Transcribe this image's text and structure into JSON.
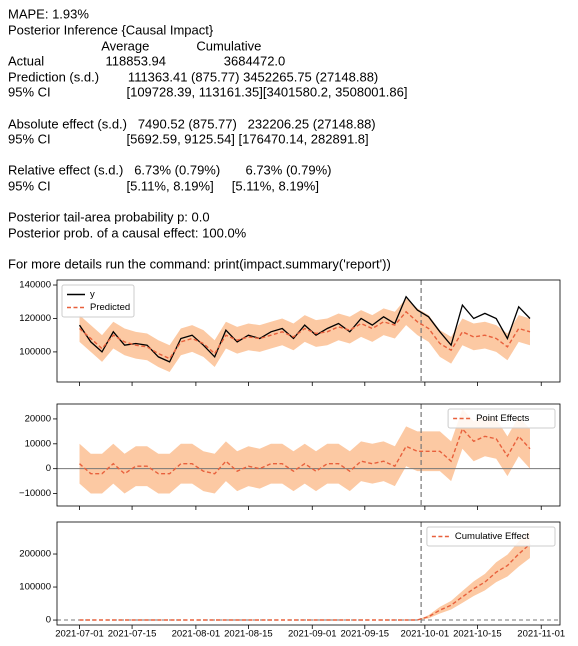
{
  "report": {
    "lines": [
      "MAPE: 1.93%",
      "Posterior Inference {Causal Impact}",
      "                          Average             Cumulative",
      "Actual                 118853.94                3684472.0",
      "Prediction (s.d.)        111363.41 (875.77) 3452265.75 (27148.88)",
      "95% CI                     [109728.39, 113161.35][3401580.2, 3508001.86]",
      "Absolute effect (s.d.)   7490.52 (875.77)   232206.25 (27148.88)",
      "95% CI                     [5692.59, 9125.54] [176470.14, 282891.8]",
      "Relative effect (s.d.)   6.73% (0.79%)       6.73% (0.79%)",
      "95% CI                     [5.11%, 8.19%]     [5.11%, 8.19%]",
      "Posterior tail-area probability p: 0.0",
      "Posterior prob. of a causal effect: 100.0%",
      "For more details run the command: print(impact.summary('report'))"
    ]
  },
  "chart_data": [
    {
      "type": "line",
      "legend": "upper left",
      "intervention": "2021-09-30",
      "xlim": [
        "2021-06-25",
        "2021-11-06"
      ],
      "ylim": [
        82000,
        143000
      ],
      "yticks": [
        100000,
        120000,
        140000
      ],
      "x": [
        "2021-07-01",
        "2021-07-04",
        "2021-07-07",
        "2021-07-10",
        "2021-07-13",
        "2021-07-16",
        "2021-07-19",
        "2021-07-22",
        "2021-07-25",
        "2021-07-28",
        "2021-07-31",
        "2021-08-03",
        "2021-08-06",
        "2021-08-09",
        "2021-08-12",
        "2021-08-15",
        "2021-08-18",
        "2021-08-21",
        "2021-08-24",
        "2021-08-27",
        "2021-08-30",
        "2021-09-02",
        "2021-09-05",
        "2021-09-08",
        "2021-09-11",
        "2021-09-14",
        "2021-09-17",
        "2021-09-20",
        "2021-09-23",
        "2021-09-26",
        "2021-09-29",
        "2021-10-02",
        "2021-10-05",
        "2021-10-08",
        "2021-10-11",
        "2021-10-14",
        "2021-10-17",
        "2021-10-20",
        "2021-10-23",
        "2021-10-26",
        "2021-10-29"
      ],
      "band": {
        "color": "#fbbf93",
        "lower": [
          106000,
          100000,
          94000,
          102000,
          98000,
          96000,
          95000,
          91000,
          88000,
          98000,
          100000,
          97000,
          91000,
          102000,
          99000,
          101000,
          100000,
          102000,
          104000,
          101000,
          106000,
          103000,
          104000,
          107000,
          105000,
          109000,
          106000,
          110000,
          108000,
          116000,
          110000,
          106000,
          97000,
          93000,
          104000,
          101000,
          102000,
          100000,
          95000,
          106000,
          104000
        ],
        "upper": [
          122000,
          116000,
          110000,
          118000,
          114000,
          112000,
          111000,
          107000,
          104000,
          114000,
          116000,
          113000,
          107000,
          118000,
          115000,
          117000,
          116000,
          118000,
          120000,
          117000,
          122000,
          119000,
          120000,
          123000,
          121000,
          125000,
          122000,
          126000,
          124000,
          132000,
          126000,
          122000,
          113000,
          109000,
          120000,
          117000,
          118000,
          116000,
          111000,
          122000,
          120000
        ]
      },
      "series": [
        {
          "name": "y",
          "color": "#000000",
          "style": "solid",
          "values": [
            116000,
            106000,
            100000,
            112000,
            104000,
            105000,
            104000,
            97000,
            94000,
            108000,
            110000,
            104000,
            97000,
            113000,
            106000,
            110000,
            108000,
            112000,
            114000,
            108000,
            116000,
            110000,
            114000,
            117000,
            112000,
            120000,
            116000,
            121000,
            117000,
            133000,
            125000,
            121000,
            112000,
            104000,
            128000,
            120000,
            123000,
            120000,
            108000,
            127000,
            120000
          ]
        },
        {
          "name": "Predicted",
          "color": "#e8603c",
          "style": "dashed",
          "values": [
            114000,
            108000,
            102000,
            110000,
            106000,
            104000,
            103000,
            99000,
            96000,
            106000,
            108000,
            105000,
            99000,
            110000,
            107000,
            109000,
            108000,
            110000,
            112000,
            109000,
            114000,
            111000,
            112000,
            115000,
            113000,
            117000,
            114000,
            118000,
            116000,
            124000,
            118000,
            114000,
            105000,
            101000,
            112000,
            109000,
            110000,
            108000,
            103000,
            114000,
            112000
          ]
        }
      ]
    },
    {
      "type": "line",
      "legend": "upper right",
      "intervention": "2021-09-30",
      "zero_line": "solid",
      "xlim": [
        "2021-06-25",
        "2021-11-06"
      ],
      "ylim": [
        -15000,
        26000
      ],
      "yticks": [
        {
          "value": -10000,
          "label": "−10000"
        },
        0,
        10000,
        20000
      ],
      "x": [
        "2021-07-01",
        "2021-07-04",
        "2021-07-07",
        "2021-07-10",
        "2021-07-13",
        "2021-07-16",
        "2021-07-19",
        "2021-07-22",
        "2021-07-25",
        "2021-07-28",
        "2021-07-31",
        "2021-08-03",
        "2021-08-06",
        "2021-08-09",
        "2021-08-12",
        "2021-08-15",
        "2021-08-18",
        "2021-08-21",
        "2021-08-24",
        "2021-08-27",
        "2021-08-30",
        "2021-09-02",
        "2021-09-05",
        "2021-09-08",
        "2021-09-11",
        "2021-09-14",
        "2021-09-17",
        "2021-09-20",
        "2021-09-23",
        "2021-09-26",
        "2021-09-29",
        "2021-10-02",
        "2021-10-05",
        "2021-10-08",
        "2021-10-11",
        "2021-10-14",
        "2021-10-17",
        "2021-10-20",
        "2021-10-23",
        "2021-10-26",
        "2021-10-29"
      ],
      "band": {
        "color": "#fbbf93",
        "lower": [
          -6000,
          -10000,
          -10000,
          -6000,
          -10000,
          -7000,
          -7000,
          -10000,
          -10000,
          -6000,
          -6000,
          -9000,
          -10000,
          -5000,
          -9000,
          -7000,
          -8000,
          -6000,
          -6000,
          -9000,
          -6000,
          -9000,
          -6000,
          -6000,
          -9000,
          -5000,
          -6000,
          -5000,
          -7000,
          1000,
          -1000,
          -1000,
          -1000,
          -5000,
          8000,
          3000,
          5000,
          4000,
          -3000,
          5000,
          0
        ],
        "upper": [
          10000,
          6000,
          6000,
          10000,
          6000,
          9000,
          9000,
          6000,
          6000,
          10000,
          10000,
          7000,
          6000,
          11000,
          7000,
          9000,
          8000,
          10000,
          10000,
          7000,
          10000,
          7000,
          10000,
          10000,
          7000,
          11000,
          10000,
          11000,
          9000,
          17000,
          15000,
          15000,
          15000,
          11000,
          24000,
          19000,
          21000,
          20000,
          13000,
          21000,
          16000
        ]
      },
      "series": [
        {
          "name": "Point Effects",
          "color": "#e8603c",
          "style": "dashed",
          "values": [
            2000,
            -2000,
            -2000,
            2000,
            -2000,
            1000,
            1000,
            -2000,
            -2000,
            2000,
            2000,
            -1000,
            -2000,
            3000,
            -1000,
            1000,
            0,
            2000,
            2000,
            -1000,
            2000,
            -1000,
            2000,
            2000,
            -1000,
            3000,
            2000,
            3000,
            1000,
            9000,
            7000,
            7000,
            7000,
            3000,
            16000,
            11000,
            13000,
            12000,
            5000,
            13000,
            8000
          ]
        }
      ]
    },
    {
      "type": "line",
      "legend": "upper right",
      "intervention": "2021-09-30",
      "zero_line": "dashed",
      "xlim": [
        "2021-06-25",
        "2021-11-06"
      ],
      "xticks": [
        "2021-07-01",
        "2021-07-15",
        "2021-08-01",
        "2021-08-15",
        "2021-09-01",
        "2021-09-15",
        "2021-10-01",
        "2021-10-15",
        "2021-11-01"
      ],
      "ylim": [
        -15000,
        297000
      ],
      "yticks": [
        0,
        100000,
        200000
      ],
      "x": [
        "2021-07-01",
        "2021-07-04",
        "2021-07-07",
        "2021-07-10",
        "2021-07-13",
        "2021-07-16",
        "2021-07-19",
        "2021-07-22",
        "2021-07-25",
        "2021-07-28",
        "2021-07-31",
        "2021-08-03",
        "2021-08-06",
        "2021-08-09",
        "2021-08-12",
        "2021-08-15",
        "2021-08-18",
        "2021-08-21",
        "2021-08-24",
        "2021-08-27",
        "2021-08-30",
        "2021-09-02",
        "2021-09-05",
        "2021-09-08",
        "2021-09-11",
        "2021-09-14",
        "2021-09-17",
        "2021-09-20",
        "2021-09-23",
        "2021-09-26",
        "2021-09-29",
        "2021-10-02",
        "2021-10-05",
        "2021-10-08",
        "2021-10-11",
        "2021-10-14",
        "2021-10-17",
        "2021-10-20",
        "2021-10-23",
        "2021-10-26",
        "2021-10-29"
      ],
      "band": {
        "color": "#fbbf93",
        "lower": [
          null,
          null,
          null,
          null,
          null,
          null,
          null,
          null,
          null,
          null,
          null,
          null,
          null,
          null,
          null,
          null,
          null,
          null,
          null,
          null,
          null,
          null,
          null,
          null,
          null,
          null,
          null,
          null,
          null,
          null,
          0,
          5000,
          20000,
          32000,
          52000,
          73000,
          90000,
          115000,
          132000,
          162000,
          188000
        ],
        "upper": [
          null,
          null,
          null,
          null,
          null,
          null,
          null,
          null,
          null,
          null,
          null,
          null,
          null,
          null,
          null,
          null,
          null,
          null,
          null,
          null,
          null,
          null,
          null,
          null,
          null,
          null,
          null,
          null,
          null,
          null,
          0,
          15000,
          40000,
          58000,
          88000,
          117000,
          140000,
          175000,
          198000,
          238000,
          272000
        ]
      },
      "series": [
        {
          "name": "Cumulative Effect",
          "color": "#e8603c",
          "style": "dashed",
          "values": [
            0,
            0,
            0,
            0,
            0,
            0,
            0,
            0,
            0,
            0,
            0,
            0,
            0,
            0,
            0,
            0,
            0,
            0,
            0,
            0,
            0,
            0,
            0,
            0,
            0,
            0,
            0,
            0,
            0,
            0,
            0,
            10000,
            30000,
            45000,
            70000,
            95000,
            115000,
            145000,
            165000,
            200000,
            230000
          ]
        }
      ]
    }
  ]
}
